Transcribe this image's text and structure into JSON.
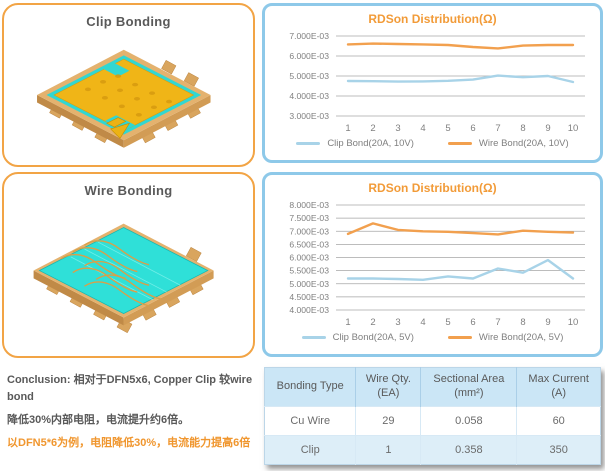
{
  "panels": {
    "clip": {
      "title": "Clip Bonding"
    },
    "wire": {
      "title": "Wire Bonding"
    }
  },
  "conclusion": {
    "line1": "Conclusion: 相对于DFN5x6, Copper Clip 较wire bond",
    "line2": "降低30%内部电阻，电流提升约6倍。",
    "line3": "以DFN5*6为例，电阻降低30%，电流能力提高6倍"
  },
  "table": {
    "headers": [
      "Bonding Type",
      "Wire Qty.\n(EA)",
      "Sectional Area\n(mm²)",
      "Max Current\n(A)"
    ],
    "rows": [
      [
        "Cu Wire",
        "29",
        "0.058",
        "60"
      ],
      [
        "Clip",
        "1",
        "0.358",
        "350"
      ]
    ]
  },
  "colors": {
    "accent_orange": "#F2A445",
    "accent_blue": "#8EC9E9",
    "chart_title": "#F29B38",
    "series_clip": "#A8D3E8",
    "series_wire": "#F2A04E",
    "text_gray": "#595959"
  },
  "chart_data": [
    {
      "type": "line",
      "title": "RDSon Distribution(Ω)",
      "x": [
        1,
        2,
        3,
        4,
        5,
        6,
        7,
        8,
        9,
        10
      ],
      "xlabel": "",
      "ylabel": "",
      "ylim": [
        0.003,
        0.007
      ],
      "grid": true,
      "legend_position": "bottom",
      "yticks": [
        {
          "label": "7.000E-03",
          "value": 0.007
        },
        {
          "label": "6.000E-03",
          "value": 0.006
        },
        {
          "label": "5.000E-03",
          "value": 0.005
        },
        {
          "label": "4.000E-03",
          "value": 0.004
        },
        {
          "label": "3.000E-03",
          "value": 0.003
        }
      ],
      "series": [
        {
          "name": "Clip Bond(20A, 10V)",
          "color": "#A8D3E8",
          "values": [
            0.00475,
            0.00474,
            0.00472,
            0.00473,
            0.00476,
            0.00482,
            0.00502,
            0.00494,
            0.005,
            0.0047
          ]
        },
        {
          "name": "Wire Bond(20A, 10V)",
          "color": "#F2A04E",
          "values": [
            0.00658,
            0.00662,
            0.0066,
            0.00658,
            0.00655,
            0.00645,
            0.00638,
            0.00652,
            0.00655,
            0.00655
          ]
        }
      ]
    },
    {
      "type": "line",
      "title": "RDSon Distribution(Ω)",
      "x": [
        1,
        2,
        3,
        4,
        5,
        6,
        7,
        8,
        9,
        10
      ],
      "xlabel": "",
      "ylabel": "",
      "ylim": [
        0.004,
        0.008
      ],
      "grid": true,
      "legend_position": "bottom",
      "yticks": [
        {
          "label": "8.000E-03",
          "value": 0.008
        },
        {
          "label": "7.500E-03",
          "value": 0.0075
        },
        {
          "label": "7.000E-03",
          "value": 0.007
        },
        {
          "label": "6.500E-03",
          "value": 0.0065
        },
        {
          "label": "6.000E-03",
          "value": 0.006
        },
        {
          "label": "5.500E-03",
          "value": 0.0055
        },
        {
          "label": "5.000E-03",
          "value": 0.005
        },
        {
          "label": "4.500E-03",
          "value": 0.0045
        },
        {
          "label": "4.000E-03",
          "value": 0.004
        }
      ],
      "series": [
        {
          "name": "Clip Bond(20A, 5V)",
          "color": "#A8D3E8",
          "values": [
            0.0052,
            0.0052,
            0.00518,
            0.00515,
            0.00528,
            0.0052,
            0.00558,
            0.00542,
            0.0059,
            0.0052
          ]
        },
        {
          "name": "Wire Bond(20A, 5V)",
          "color": "#F2A04E",
          "values": [
            0.0069,
            0.0073,
            0.00705,
            0.007,
            0.00698,
            0.00693,
            0.00688,
            0.00702,
            0.00698,
            0.00695
          ]
        }
      ]
    }
  ]
}
